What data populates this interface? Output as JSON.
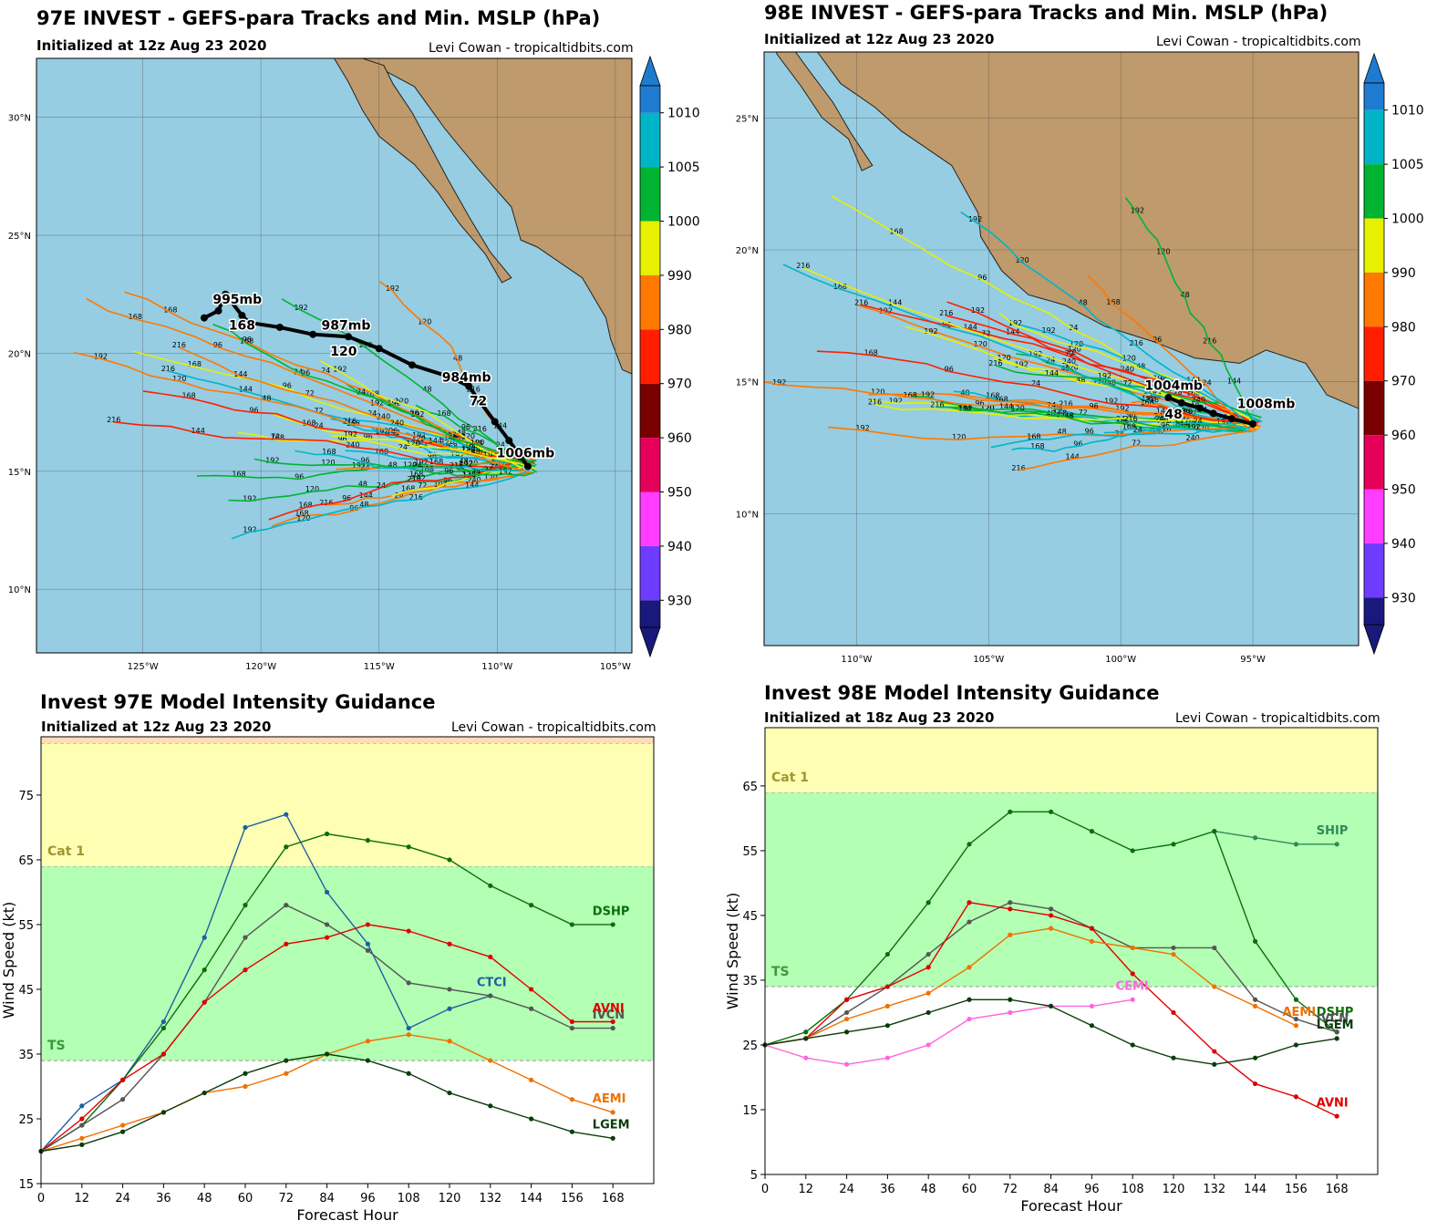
{
  "colorbar": {
    "ticks": [
      "1010",
      "1005",
      "1000",
      "990",
      "980",
      "970",
      "960",
      "950",
      "940",
      "930"
    ],
    "colors": [
      "#1e7bd0",
      "#00b4c8",
      "#00b432",
      "#e6f000",
      "#ff7800",
      "#ff1e00",
      "#780000",
      "#e6005a",
      "#ff3cff",
      "#6e3cff",
      "#19197d"
    ]
  },
  "map97": {
    "title": "97E INVEST - GEFS-para Tracks and Min. MSLP (hPa)",
    "subtitle": "Initialized at 12z Aug 23 2020",
    "credit": "Levi Cowan - tropicaltidbits.com",
    "lat_labels": [
      {
        "v": 30,
        "t": "30°N"
      },
      {
        "v": 25,
        "t": "25°N"
      },
      {
        "v": 20,
        "t": "20°N"
      },
      {
        "v": 15,
        "t": "15°N"
      },
      {
        "v": 10,
        "t": "10°N"
      }
    ],
    "lon_labels": [
      {
        "v": -125,
        "t": "125°W"
      },
      {
        "v": -120,
        "t": "120°W"
      },
      {
        "v": -115,
        "t": "115°W"
      },
      {
        "v": -110,
        "t": "110°W"
      },
      {
        "v": -105,
        "t": "105°W"
      }
    ],
    "mean_labels": [
      {
        "t": "995mb",
        "lon": -121,
        "lat": 22.1
      },
      {
        "t": "168",
        "lon": -120.8,
        "lat": 21.0
      },
      {
        "t": "987mb",
        "lon": -116.4,
        "lat": 21.0
      },
      {
        "t": "120",
        "lon": -116.5,
        "lat": 19.9
      },
      {
        "t": "984mb",
        "lon": -111.3,
        "lat": 18.8
      },
      {
        "t": "72",
        "lon": -110.8,
        "lat": 17.8
      },
      {
        "t": "1006mb",
        "lon": -108.8,
        "lat": 15.6
      }
    ],
    "member_labels": [
      "240",
      "216",
      "192",
      "168",
      "144",
      "120",
      "96",
      "72",
      "48",
      "24"
    ]
  },
  "map98": {
    "title": "98E INVEST - GEFS-para Tracks and Min. MSLP (hPa)",
    "subtitle": "Initialized at 12z Aug 23 2020",
    "credit": "Levi Cowan - tropicaltidbits.com",
    "lat_labels": [
      {
        "v": 25,
        "t": "25°N"
      },
      {
        "v": 20,
        "t": "20°N"
      },
      {
        "v": 15,
        "t": "15°N"
      },
      {
        "v": 10,
        "t": "10°N"
      }
    ],
    "lon_labels": [
      {
        "v": -110,
        "t": "110°W"
      },
      {
        "v": -105,
        "t": "105°W"
      },
      {
        "v": -100,
        "t": "100°W"
      },
      {
        "v": -95,
        "t": "95°W"
      }
    ],
    "mean_labels": [
      {
        "t": "1004mb",
        "lon": -98,
        "lat": 14.7
      },
      {
        "t": "48",
        "lon": -98.0,
        "lat": 13.6
      },
      {
        "t": "1008mb",
        "lon": -94.5,
        "lat": 14.0
      }
    ],
    "member_labels": [
      "240",
      "216",
      "192",
      "168",
      "144",
      "120",
      "96",
      "72",
      "48",
      "24"
    ]
  },
  "chart_data": [
    {
      "type": "line",
      "title": "Invest 97E Model Intensity Guidance",
      "subtitle": "Initialized at 12z Aug 23 2020",
      "credit": "Levi Cowan - tropicaltidbits.com",
      "xlabel": "Forecast Hour",
      "ylabel": "Wind Speed (kt)",
      "xlim": [
        0,
        180
      ],
      "ylim": [
        15,
        84
      ],
      "x_ticks": [
        0,
        12,
        24,
        36,
        48,
        60,
        72,
        84,
        96,
        108,
        120,
        132,
        144,
        156,
        168
      ],
      "y_ticks": [
        15,
        25,
        35,
        45,
        55,
        65,
        75
      ],
      "bands": [
        {
          "label": "TS",
          "from": 34,
          "to": 64,
          "color": "#b3ffb3"
        },
        {
          "label": "Cat 1",
          "from": 64,
          "to": 83,
          "color": "#ffffb3"
        },
        {
          "label": "",
          "from": 83,
          "to": 84,
          "color": "#ffdcb4"
        }
      ],
      "series": [
        {
          "name": "CTCI",
          "color": "#1f5fa0",
          "label_at": [
            128,
            45.5
          ],
          "x": [
            0,
            12,
            24,
            36,
            48,
            60,
            72,
            84,
            96,
            108,
            120,
            132
          ],
          "values": [
            20,
            27,
            31,
            40,
            53,
            70,
            72,
            60,
            52,
            39,
            42,
            44
          ]
        },
        {
          "name": "DSHP",
          "color": "#0a6e0a",
          "label_at": [
            162,
            56.5
          ],
          "x": [
            0,
            12,
            24,
            36,
            48,
            60,
            72,
            84,
            96,
            108,
            120,
            132,
            144,
            156,
            168
          ],
          "values": [
            20,
            24,
            31,
            39,
            48,
            58,
            67,
            69,
            68,
            67,
            65,
            61,
            58,
            55,
            55
          ]
        },
        {
          "name": "IVCN",
          "color": "#555555",
          "label_at": [
            162,
            40.5
          ],
          "x": [
            0,
            12,
            24,
            36,
            48,
            60,
            72,
            84,
            96,
            108,
            120,
            132,
            144,
            156,
            168
          ],
          "values": [
            20,
            24,
            28,
            35,
            43,
            53,
            58,
            55,
            51,
            46,
            45,
            44,
            42,
            39,
            39
          ]
        },
        {
          "name": "AVNI",
          "color": "#e00000",
          "label_at": [
            162,
            41.5
          ],
          "x": [
            0,
            12,
            24,
            36,
            48,
            60,
            72,
            84,
            96,
            108,
            120,
            132,
            144,
            156,
            168
          ],
          "values": [
            20,
            25,
            31,
            35,
            43,
            48,
            52,
            53,
            55,
            54,
            52,
            50,
            45,
            40,
            40
          ]
        },
        {
          "name": "AEMI",
          "color": "#f07000",
          "label_at": [
            162,
            27.5
          ],
          "x": [
            0,
            12,
            24,
            36,
            48,
            60,
            72,
            84,
            96,
            108,
            120,
            132,
            144,
            156,
            168
          ],
          "values": [
            20,
            22,
            24,
            26,
            29,
            30,
            32,
            35,
            37,
            38,
            37,
            34,
            31,
            28,
            26
          ]
        },
        {
          "name": "LGEM",
          "color": "#0a3c0a",
          "label_at": [
            162,
            23.5
          ],
          "x": [
            0,
            12,
            24,
            36,
            48,
            60,
            72,
            84,
            96,
            108,
            120,
            132,
            144,
            156,
            168
          ],
          "values": [
            20,
            21,
            23,
            26,
            29,
            32,
            34,
            35,
            34,
            32,
            29,
            27,
            25,
            23,
            22
          ]
        }
      ]
    },
    {
      "type": "line",
      "title": "Invest 98E Model Intensity Guidance",
      "subtitle": "Initialized at 18z Aug 23 2020",
      "credit": "Levi Cowan - tropicaltidbits.com",
      "xlabel": "Forecast Hour",
      "ylabel": "Wind Speed (kt)",
      "xlim": [
        0,
        180
      ],
      "ylim": [
        5,
        74
      ],
      "x_ticks": [
        0,
        12,
        24,
        36,
        48,
        60,
        72,
        84,
        96,
        108,
        120,
        132,
        144,
        156,
        168
      ],
      "y_ticks": [
        5,
        15,
        25,
        35,
        45,
        55,
        65
      ],
      "bands": [
        {
          "label": "TS",
          "from": 34,
          "to": 64,
          "color": "#b3ffb3"
        },
        {
          "label": "Cat 1",
          "from": 64,
          "to": 74,
          "color": "#ffffb3"
        }
      ],
      "series": [
        {
          "name": "SHIP",
          "color": "#2e8b57",
          "label_at": [
            162,
            57.5
          ],
          "x": [
            132,
            144,
            156,
            168
          ],
          "values": [
            58,
            57,
            56,
            56
          ]
        },
        {
          "name": "DSHP",
          "color": "#0a6e0a",
          "label_at": [
            162,
            29.5
          ],
          "x": [
            0,
            12,
            24,
            36,
            48,
            60,
            72,
            84,
            96,
            108,
            120,
            132,
            144,
            156,
            168
          ],
          "values": [
            25,
            27,
            32,
            39,
            47,
            56,
            61,
            61,
            58,
            55,
            56,
            58,
            41,
            32,
            27
          ]
        },
        {
          "name": "IVCN",
          "color": "#555555",
          "label_at": [
            162,
            28.5
          ],
          "x": [
            0,
            12,
            24,
            36,
            48,
            60,
            72,
            84,
            96,
            108,
            120,
            132,
            144,
            156,
            168
          ],
          "values": [
            25,
            26,
            30,
            34,
            39,
            44,
            47,
            46,
            43,
            40,
            40,
            40,
            32,
            29,
            27
          ]
        },
        {
          "name": "AVNI",
          "color": "#e00000",
          "label_at": [
            162,
            15.5
          ],
          "x": [
            0,
            12,
            24,
            36,
            48,
            60,
            72,
            84,
            96,
            108,
            120,
            132,
            144,
            156,
            168
          ],
          "values": [
            25,
            26,
            32,
            34,
            37,
            47,
            46,
            45,
            43,
            36,
            30,
            24,
            19,
            17,
            14
          ]
        },
        {
          "name": "AEMI",
          "color": "#f07000",
          "label_at": [
            152,
            29.5
          ],
          "x": [
            0,
            12,
            24,
            36,
            48,
            60,
            72,
            84,
            96,
            108,
            120,
            132,
            144,
            156
          ],
          "values": [
            25,
            26,
            29,
            31,
            33,
            37,
            42,
            43,
            41,
            40,
            39,
            34,
            31,
            28
          ]
        },
        {
          "name": "CEMI",
          "color": "#ff66dd",
          "label_at": [
            103,
            33.5
          ],
          "x": [
            0,
            12,
            24,
            36,
            48,
            60,
            72,
            84,
            96,
            108
          ],
          "values": [
            25,
            23,
            22,
            23,
            25,
            29,
            30,
            31,
            31,
            32
          ]
        },
        {
          "name": "LGEM",
          "color": "#0a3c0a",
          "label_at": [
            162,
            27.5
          ],
          "x": [
            0,
            12,
            24,
            36,
            48,
            60,
            72,
            84,
            96,
            108,
            120,
            132,
            144,
            156,
            168
          ],
          "values": [
            25,
            26,
            27,
            28,
            30,
            32,
            32,
            31,
            28,
            25,
            23,
            22,
            23,
            25,
            26
          ]
        }
      ]
    }
  ]
}
